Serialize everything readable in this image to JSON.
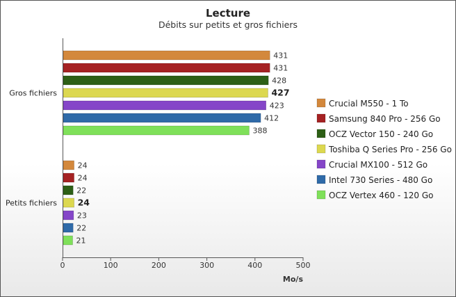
{
  "chart_data": {
    "type": "bar",
    "orientation": "horizontal",
    "title": "Lecture",
    "subtitle": "Débits sur petits et gros fichiers",
    "xlabel": "Mo/s",
    "ylabel": "",
    "xlim": [
      0,
      500
    ],
    "xticks": [
      "0",
      "100",
      "200",
      "300",
      "400",
      "500"
    ],
    "categories": [
      "Gros fichiers",
      "Petits fichiers"
    ],
    "highlighted_series": "Toshiba Q Series Pro - 256 Go",
    "legend_position": "right",
    "grid": false,
    "series": [
      {
        "name": "Crucial M550 - 1 To",
        "color": "#d3883c",
        "values": [
          431,
          24
        ]
      },
      {
        "name": "Samsung 840 Pro - 256 Go",
        "color": "#a52223",
        "values": [
          431,
          24
        ]
      },
      {
        "name": "OCZ Vector 150 - 240 Go",
        "color": "#2d5f16",
        "values": [
          428,
          22
        ]
      },
      {
        "name": "Toshiba Q Series Pro - 256 Go",
        "color": "#dcd850",
        "values": [
          427,
          24
        ]
      },
      {
        "name": "Crucial MX100 - 512 Go",
        "color": "#8546c8",
        "values": [
          423,
          23
        ]
      },
      {
        "name": "Intel 730 Series - 480 Go",
        "color": "#2f6aa8",
        "values": [
          412,
          22
        ]
      },
      {
        "name": "OCZ Vertex 460 - 120 Go",
        "color": "#7fe05a",
        "values": [
          388,
          21
        ]
      }
    ]
  }
}
